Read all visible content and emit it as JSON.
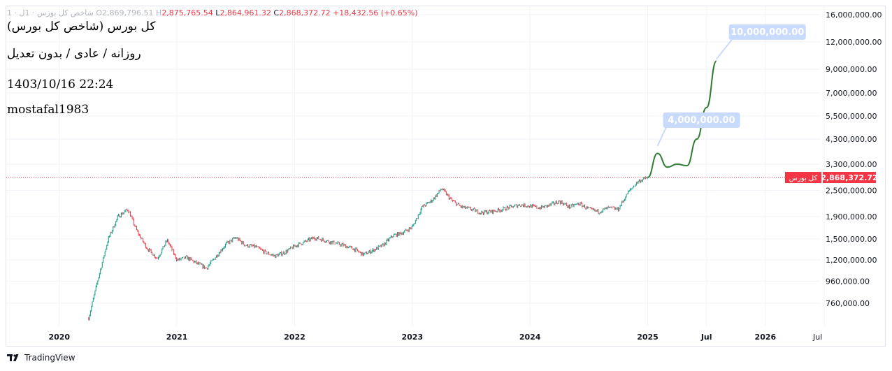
{
  "header": {
    "symbol": "شاخص کل بورس · 1ل · 1",
    "open_label": "O",
    "open": "2,869,796.51",
    "high_label": "H",
    "high": "2,875,765.54",
    "low_label": "L",
    "low": "2,864,961.32",
    "close_label": "C",
    "close": "2,868,372.72",
    "change": "+18,432.56 (+0.65%)"
  },
  "overlay_text": {
    "title": "کل بورس (شاخص کل بورس)",
    "subtitle": "روزانه / عادی / بدون تعدیل",
    "date": "1403/10/16 22:24",
    "author": "mostafal1983"
  },
  "footer": {
    "brand": "TradingView"
  },
  "colors": {
    "up": "#089981",
    "down": "#f23645",
    "projection": "#2e7d32",
    "label_bg": "#c9dbfc",
    "label_text": "#ffffff",
    "grid": "#f0f3fa",
    "axis_text": "#131722"
  },
  "chart_data": {
    "type": "candlestick",
    "log_scale": true,
    "grid": true,
    "x_ticks": [
      "2020",
      "2021",
      "2022",
      "2023",
      "2024",
      "2025",
      "Jul",
      "2026",
      "Jul"
    ],
    "y_ticks": [
      16000000,
      12000000,
      9000000,
      7000000,
      5500000,
      4300000,
      3300000,
      2500000,
      1900000,
      1500000,
      1200000,
      960000,
      760000
    ],
    "y_tick_labels": [
      "16,000,000.00",
      "12,000,000.00",
      "9,000,000.00",
      "7,000,000.00",
      "5,500,000.00",
      "4,300,000.00",
      "3,300,000.00",
      "2,500,000.00",
      "1,900,000.00",
      "1,500,000.00",
      "1,200,000.00",
      "960,000.00",
      "760,000.00"
    ],
    "series": [
      {
        "name": "کل بورس",
        "approximate_closes": [
          [
            "2020-04",
            650000
          ],
          [
            "2020-05",
            1000000
          ],
          [
            "2020-06",
            1500000
          ],
          [
            "2020-07",
            1900000
          ],
          [
            "2020-08",
            2050000
          ],
          [
            "2020-09",
            1600000
          ],
          [
            "2020-10",
            1350000
          ],
          [
            "2020-11",
            1220000
          ],
          [
            "2020-12",
            1480000
          ],
          [
            "2021-01",
            1200000
          ],
          [
            "2021-02",
            1230000
          ],
          [
            "2021-03",
            1160000
          ],
          [
            "2021-04",
            1100000
          ],
          [
            "2021-05",
            1250000
          ],
          [
            "2021-06",
            1420000
          ],
          [
            "2021-07",
            1520000
          ],
          [
            "2021-08",
            1400000
          ],
          [
            "2021-09",
            1380000
          ],
          [
            "2021-10",
            1300000
          ],
          [
            "2021-11",
            1250000
          ],
          [
            "2021-12",
            1300000
          ],
          [
            "2022-01",
            1390000
          ],
          [
            "2022-02",
            1450000
          ],
          [
            "2022-03",
            1520000
          ],
          [
            "2022-04",
            1480000
          ],
          [
            "2022-05",
            1440000
          ],
          [
            "2022-06",
            1400000
          ],
          [
            "2022-07",
            1350000
          ],
          [
            "2022-08",
            1270000
          ],
          [
            "2022-09",
            1330000
          ],
          [
            "2022-10",
            1400000
          ],
          [
            "2022-11",
            1550000
          ],
          [
            "2022-12",
            1600000
          ],
          [
            "2023-01",
            1700000
          ],
          [
            "2023-02",
            2100000
          ],
          [
            "2023-03",
            2250000
          ],
          [
            "2023-04",
            2550000
          ],
          [
            "2023-05",
            2250000
          ],
          [
            "2023-06",
            2100000
          ],
          [
            "2023-07",
            2050000
          ],
          [
            "2023-08",
            1980000
          ],
          [
            "2023-09",
            2000000
          ],
          [
            "2023-10",
            2040000
          ],
          [
            "2023-11",
            2100000
          ],
          [
            "2023-12",
            2150000
          ],
          [
            "2024-01",
            2120000
          ],
          [
            "2024-02",
            2080000
          ],
          [
            "2024-03",
            2140000
          ],
          [
            "2024-04",
            2230000
          ],
          [
            "2024-05",
            2100000
          ],
          [
            "2024-06",
            2180000
          ],
          [
            "2024-07",
            2050000
          ],
          [
            "2024-08",
            2000000
          ],
          [
            "2024-09",
            2080000
          ],
          [
            "2024-10",
            2050000
          ],
          [
            "2024-11",
            2450000
          ],
          [
            "2024-12",
            2750000
          ],
          [
            "2025-01",
            2868372.72
          ]
        ]
      }
    ],
    "last_value": 2868372.72,
    "last_value_label": "2,868,372.72",
    "last_value_tag": "کل بورس",
    "projection": {
      "points": [
        [
          "2025-01",
          2868372.72
        ],
        [
          "2025-02",
          3700000
        ],
        [
          "2025-03",
          3200000
        ],
        [
          "2025-04",
          3300000
        ],
        [
          "2025-05",
          3250000
        ],
        [
          "2025-06",
          4300000
        ],
        [
          "2025-07",
          6000000
        ],
        [
          "2025-08",
          9800000
        ]
      ]
    },
    "annotations": [
      {
        "text": "4,000,000.00",
        "value": 4000000,
        "date": "2025-02"
      },
      {
        "text": "10,000,000.00",
        "value": 10000000,
        "date": "2025-08"
      }
    ]
  }
}
